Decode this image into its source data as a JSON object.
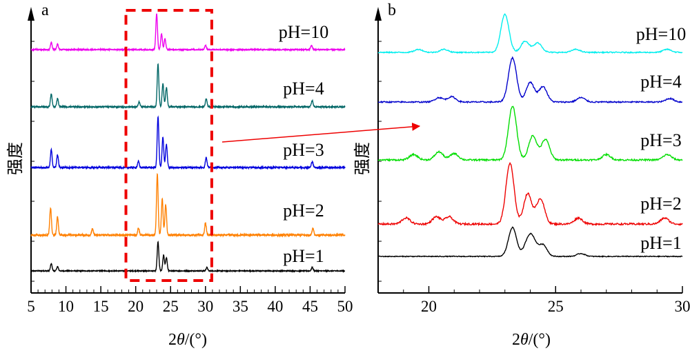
{
  "chart_data": [
    {
      "type": "line",
      "panel": "a",
      "xlabel": "2θ/(°)",
      "ylabel": "强度",
      "xlim": [
        5,
        50
      ],
      "xticks": [
        "5",
        "10",
        "15",
        "20",
        "25",
        "30",
        "35",
        "40",
        "45",
        "50"
      ],
      "highlight_box_x": [
        18.6,
        30.9
      ],
      "series": [
        {
          "name": "pH=1",
          "color": "#000000",
          "peaks": [
            [
              7.9,
              0.25
            ],
            [
              8.8,
              0.15
            ],
            [
              23.2,
              1.0
            ],
            [
              24.0,
              0.55
            ],
            [
              24.4,
              0.45
            ],
            [
              30.2,
              0.12
            ],
            [
              45.3,
              0.12
            ]
          ]
        },
        {
          "name": "pH=2",
          "color": "#ff8000",
          "peaks": [
            [
              7.8,
              0.45
            ],
            [
              8.8,
              0.3
            ],
            [
              13.8,
              0.1
            ],
            [
              20.4,
              0.12
            ],
            [
              23.1,
              1.0
            ],
            [
              23.8,
              0.6
            ],
            [
              24.3,
              0.5
            ],
            [
              30.0,
              0.2
            ],
            [
              45.4,
              0.12
            ]
          ]
        },
        {
          "name": "pH=3",
          "color": "#0000dd",
          "peaks": [
            [
              7.9,
              0.35
            ],
            [
              8.8,
              0.25
            ],
            [
              20.4,
              0.12
            ],
            [
              23.2,
              1.0
            ],
            [
              23.9,
              0.6
            ],
            [
              24.4,
              0.45
            ],
            [
              30.1,
              0.2
            ],
            [
              45.3,
              0.12
            ]
          ]
        },
        {
          "name": "pH=4",
          "color": "#006666",
          "peaks": [
            [
              7.9,
              0.3
            ],
            [
              8.8,
              0.2
            ],
            [
              20.5,
              0.12
            ],
            [
              23.2,
              1.0
            ],
            [
              23.9,
              0.55
            ],
            [
              24.4,
              0.45
            ],
            [
              30.1,
              0.2
            ],
            [
              45.3,
              0.15
            ]
          ]
        },
        {
          "name": "pH=10",
          "color": "#ee00ee",
          "peaks": [
            [
              7.9,
              0.2
            ],
            [
              8.8,
              0.15
            ],
            [
              23.0,
              1.0
            ],
            [
              23.7,
              0.45
            ],
            [
              24.2,
              0.3
            ],
            [
              30.0,
              0.12
            ],
            [
              45.2,
              0.12
            ]
          ]
        }
      ]
    },
    {
      "type": "line",
      "panel": "b",
      "xlabel": "2θ/(°)",
      "ylabel": "强度",
      "xlim": [
        18,
        30
      ],
      "xticks": [
        "20",
        "25",
        "30"
      ],
      "series": [
        {
          "name": "pH=1",
          "color": "#000000",
          "peaks": [
            [
              23.3,
              1.0
            ],
            [
              23.9,
              0.45
            ],
            [
              24.1,
              0.5
            ],
            [
              24.5,
              0.4
            ],
            [
              26.0,
              0.1
            ]
          ]
        },
        {
          "name": "pH=2",
          "color": "#ee0000",
          "peaks": [
            [
              19.1,
              0.1
            ],
            [
              20.3,
              0.12
            ],
            [
              20.8,
              0.12
            ],
            [
              23.2,
              1.0
            ],
            [
              23.9,
              0.5
            ],
            [
              24.4,
              0.42
            ],
            [
              25.9,
              0.1
            ],
            [
              29.3,
              0.1
            ]
          ]
        },
        {
          "name": "pH=3",
          "color": "#00dd00",
          "peaks": [
            [
              19.4,
              0.1
            ],
            [
              20.4,
              0.15
            ],
            [
              21.0,
              0.12
            ],
            [
              23.3,
              1.0
            ],
            [
              24.1,
              0.45
            ],
            [
              24.6,
              0.38
            ],
            [
              27.0,
              0.1
            ],
            [
              29.4,
              0.1
            ]
          ]
        },
        {
          "name": "pH=4",
          "color": "#0000cc",
          "peaks": [
            [
              20.4,
              0.1
            ],
            [
              20.9,
              0.12
            ],
            [
              23.3,
              1.0
            ],
            [
              24.0,
              0.45
            ],
            [
              24.5,
              0.35
            ],
            [
              26.0,
              0.1
            ],
            [
              29.5,
              0.08
            ]
          ]
        },
        {
          "name": "pH=10",
          "color": "#00eeee",
          "peaks": [
            [
              19.6,
              0.08
            ],
            [
              20.6,
              0.08
            ],
            [
              23.0,
              1.0
            ],
            [
              23.8,
              0.3
            ],
            [
              24.3,
              0.25
            ],
            [
              25.8,
              0.08
            ],
            [
              29.4,
              0.08
            ]
          ]
        }
      ]
    }
  ]
}
